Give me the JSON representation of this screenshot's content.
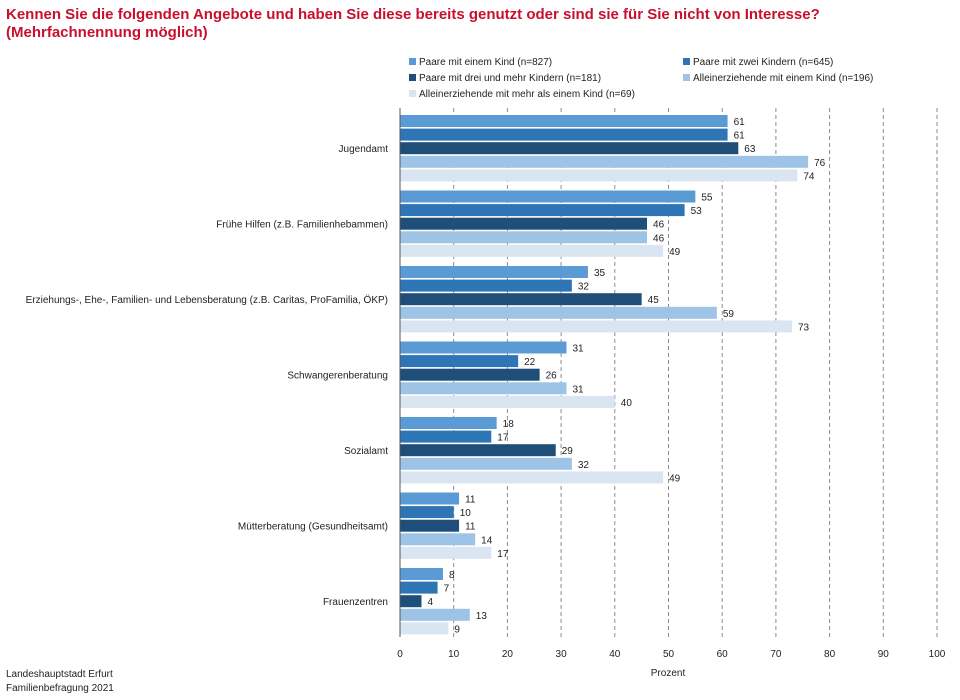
{
  "title": {
    "line1": "Kennen Sie die folgenden Angebote und haben Sie diese bereits genutzt oder sind sie für Sie nicht von Interesse?",
    "line2": "(Mehrfachnennung möglich)"
  },
  "footer": {
    "line1": "Landeshauptstadt Erfurt",
    "line2": "Familienbefragung 2021"
  },
  "chart_data": {
    "type": "bar",
    "orientation": "horizontal",
    "xlabel": "Prozent",
    "xlim": [
      0,
      100
    ],
    "xticks": [
      0,
      10,
      20,
      30,
      40,
      50,
      60,
      70,
      80,
      90,
      100
    ],
    "grid": "vertical dashed",
    "legend_position": "top",
    "categories": [
      "Jugendamt",
      "Frühe Hilfen (z.B. Familienhebammen)",
      "Erziehungs-, Ehe-, Familien- und Lebensberatung (z.B. Caritas, ProFamilia, ÖKP)",
      "Schwangerenberatung",
      "Sozialamt",
      "Mütterberatung (Gesundheitsamt)",
      "Frauenzentren"
    ],
    "series": [
      {
        "name": "Paare mit einem Kind (n=827)",
        "color": "#5b9bd5",
        "values": [
          61,
          55,
          35,
          31,
          18,
          11,
          8
        ]
      },
      {
        "name": "Paare mit zwei Kindern (n=645)",
        "color": "#2e75b6",
        "values": [
          61,
          53,
          32,
          22,
          17,
          10,
          7
        ]
      },
      {
        "name": "Paare mit drei und mehr Kindern (n=181)",
        "color": "#1f4e79",
        "values": [
          63,
          46,
          45,
          26,
          29,
          11,
          4
        ]
      },
      {
        "name": "Alleinerziehende mit einem Kind (n=196)",
        "color": "#9dc3e6",
        "values": [
          76,
          46,
          59,
          31,
          32,
          14,
          13
        ]
      },
      {
        "name": "Alleinerziehende mit mehr als einem Kind (n=69)",
        "color": "#dae5f2",
        "values": [
          74,
          49,
          73,
          40,
          49,
          17,
          9
        ]
      }
    ]
  }
}
